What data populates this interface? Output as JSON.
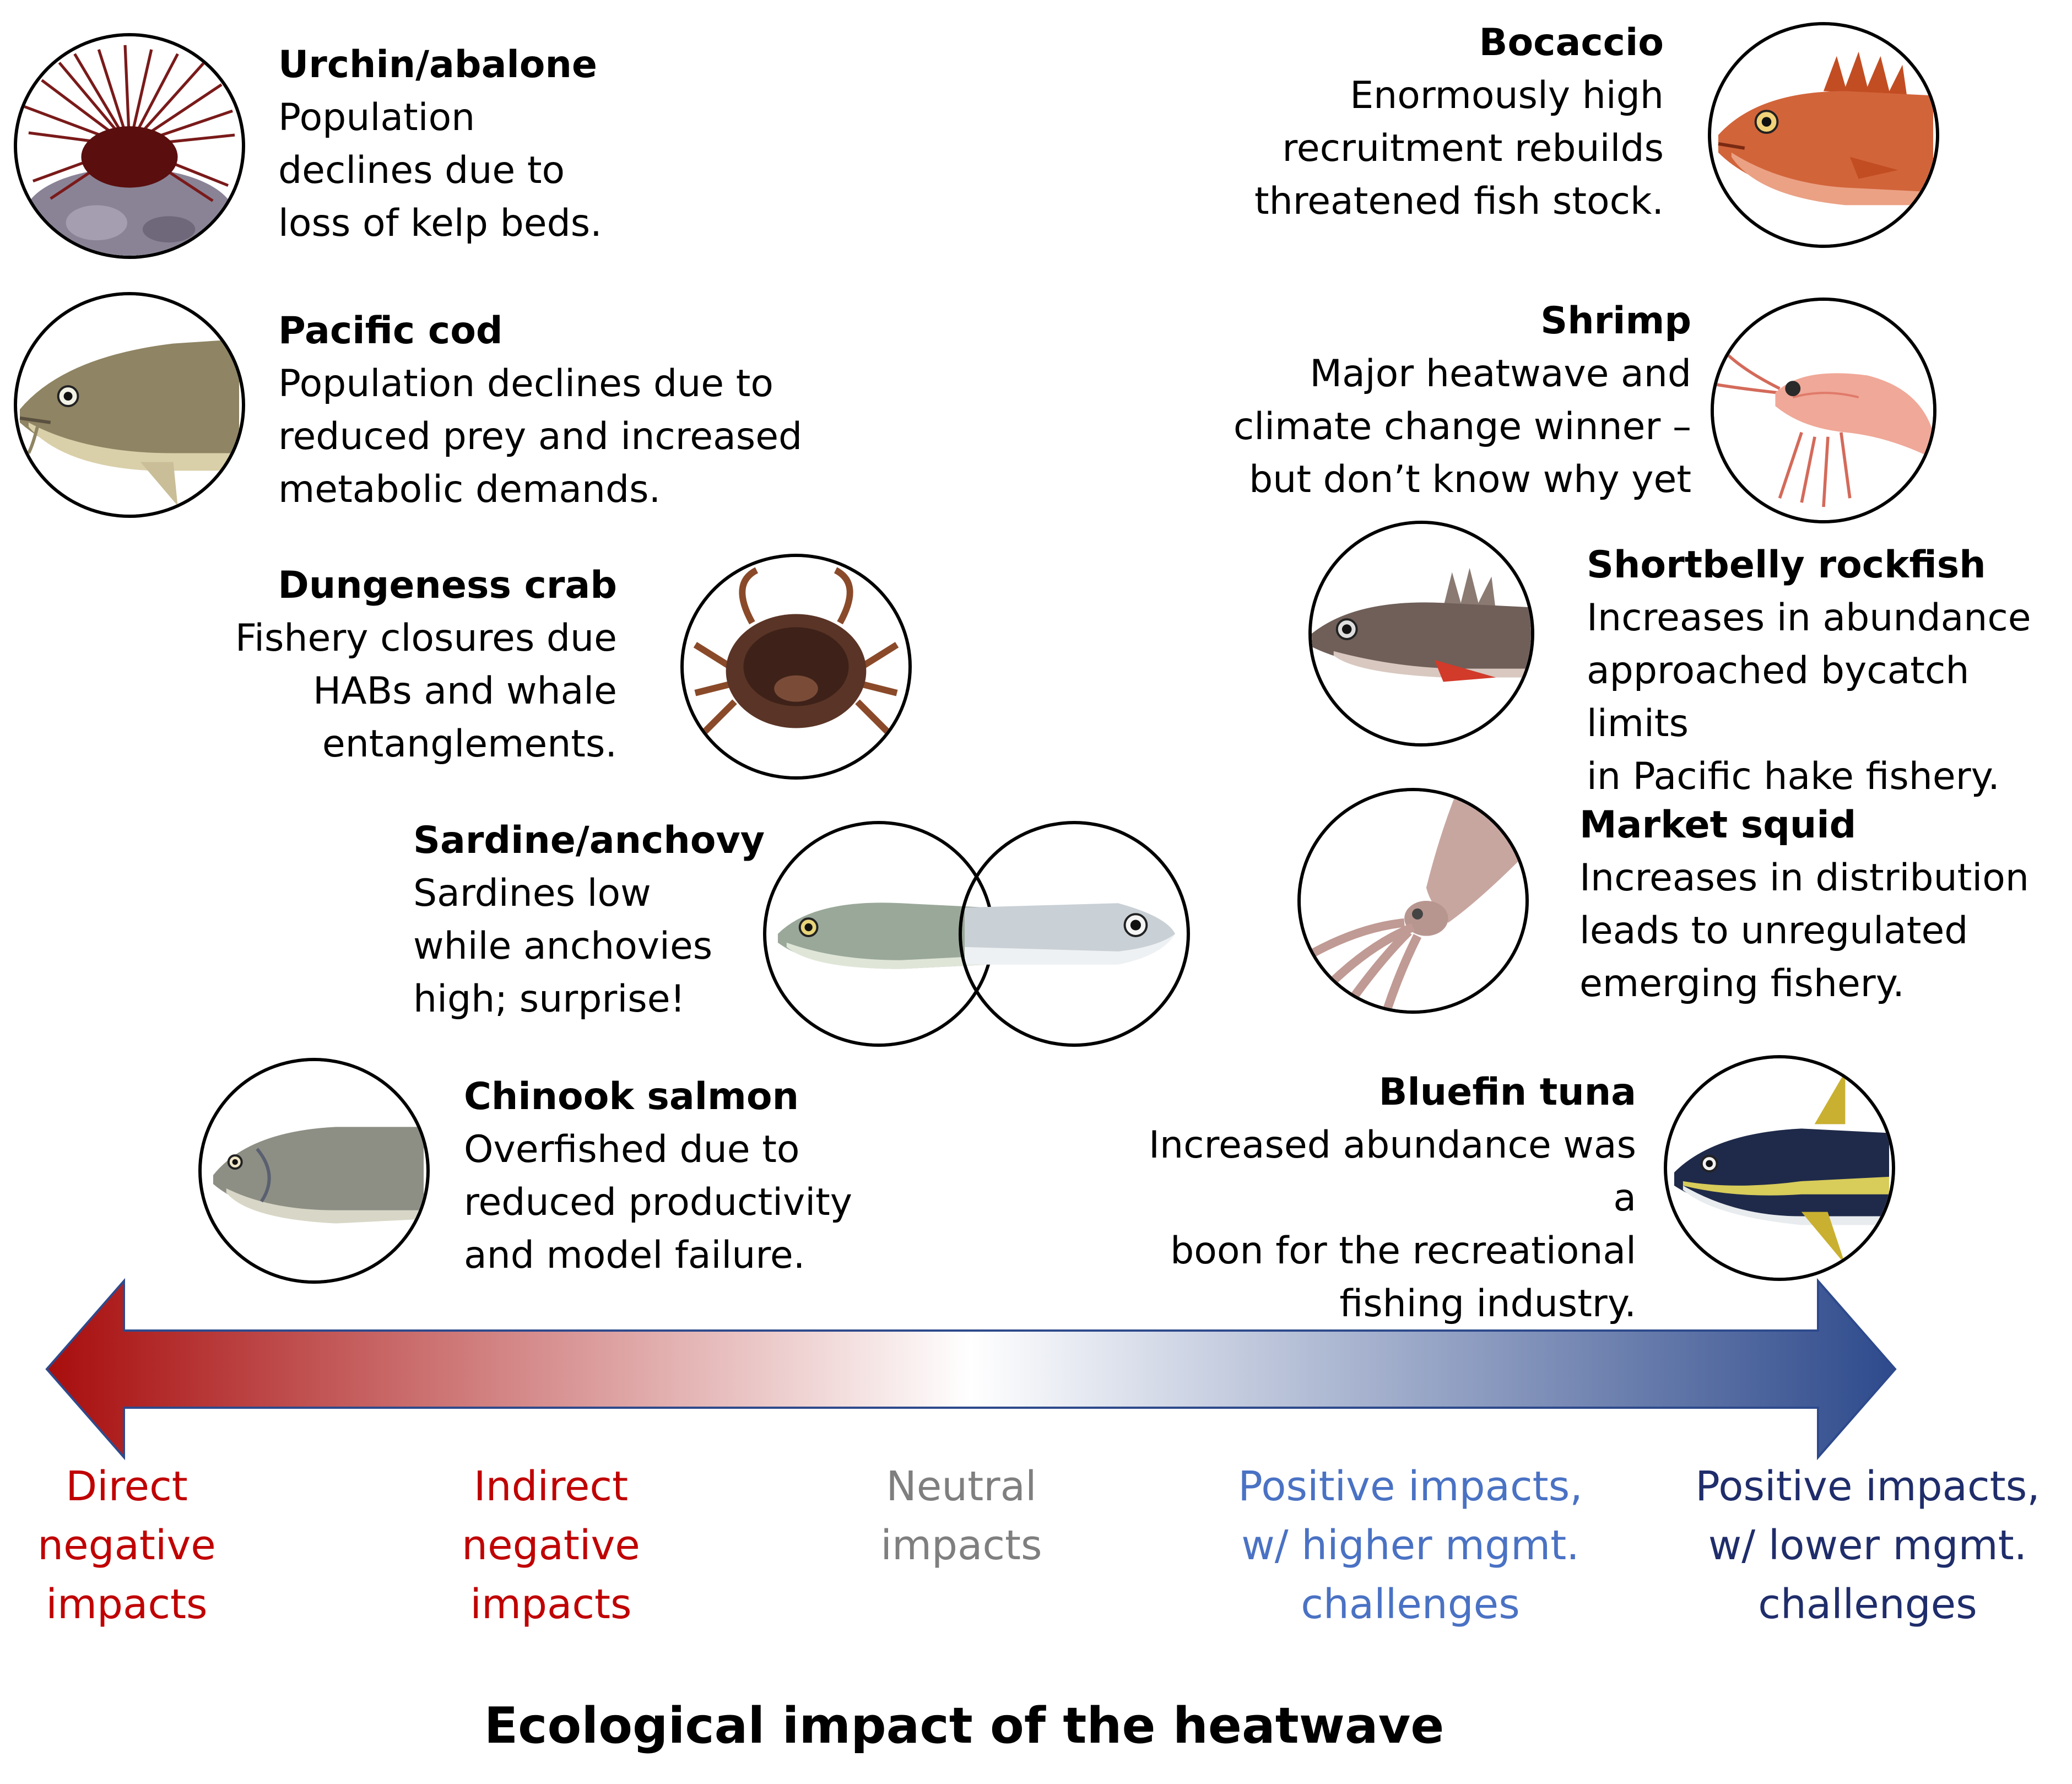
{
  "species": [
    {
      "name": "Urchin/abalone",
      "desc": "Population\ndeclines due to\nloss of kelp beds.",
      "icon": "sea-urchin-icon"
    },
    {
      "name": "Pacific cod",
      "desc": "Population declines due to\nreduced prey and increased\nmetabolic demands.",
      "icon": "pacific-cod-icon"
    },
    {
      "name": "Dungeness crab",
      "desc": "Fishery closures due\nHABs and whale\nentanglements.",
      "icon": "crab-icon"
    },
    {
      "name": "Sardine/anchovy",
      "desc": "Sardines low\nwhile anchovies\nhigh; surprise!",
      "icon": "sardine-anchovy-icon"
    },
    {
      "name": "Chinook salmon",
      "desc": "Overfished due to\nreduced productivity\nand model failure.",
      "icon": "salmon-icon"
    },
    {
      "name": "Bocaccio",
      "desc": "Enormously high\nrecruitment rebuilds\nthreatened fish stock.",
      "icon": "bocaccio-icon"
    },
    {
      "name": "Shrimp",
      "desc": "Major heatwave and\nclimate change winner –\nbut don’t know why yet",
      "icon": "shrimp-icon"
    },
    {
      "name": "Shortbelly rockfish",
      "desc": "Increases in abundance\napproached bycatch limits\nin Pacific hake fishery.",
      "icon": "rockfish-icon"
    },
    {
      "name": "Market squid",
      "desc": "Increases in distribution\nleads to unregulated\nemerging fishery.",
      "icon": "squid-icon"
    },
    {
      "name": "Bluefin tuna",
      "desc": "Increased abundance was a\nboon for the recreational\nfishing industry.",
      "icon": "tuna-icon"
    }
  ],
  "scale": [
    {
      "label": "Direct\nnegative\nimpacts",
      "color": "#c00000"
    },
    {
      "label": "Indirect\nnegative\nimpacts",
      "color": "#c00000"
    },
    {
      "label": "Neutral\nimpacts",
      "color": "#7f7f7f"
    },
    {
      "label": "Positive impacts,\nw/ higher mgmt.\nchallenges",
      "color": "#4a72c4"
    },
    {
      "label": "Positive impacts,\nw/ lower mgmt.\nchallenges",
      "color": "#1f2d6b"
    }
  ],
  "arrow_colors": {
    "negative": "#a80d0d",
    "neutral": "#ffffff",
    "positive": "#2e4a8c"
  },
  "axis_title": "Ecological impact of the heatwave"
}
